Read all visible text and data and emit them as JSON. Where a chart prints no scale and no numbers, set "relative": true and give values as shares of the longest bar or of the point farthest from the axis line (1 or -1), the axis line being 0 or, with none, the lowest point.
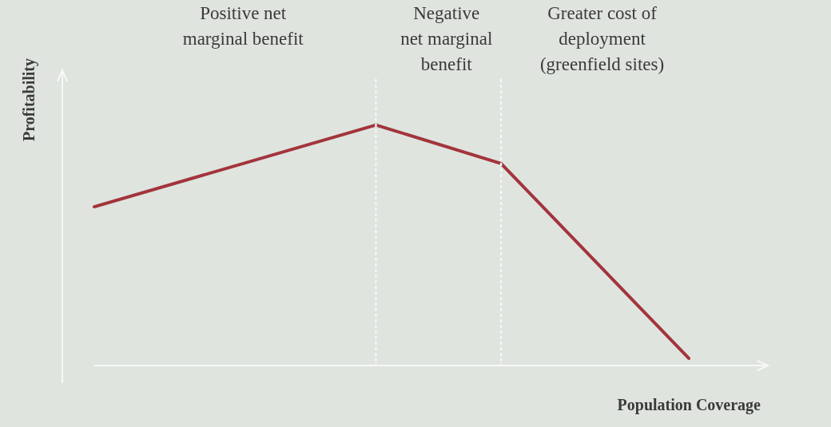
{
  "chart_data": {
    "type": "line",
    "relative": true,
    "xlabel": "Population Coverage",
    "ylabel": "Profitability",
    "marker": "none",
    "line_style": "solid",
    "categories": [
      null,
      null,
      null,
      null,
      null,
      null,
      null,
      null,
      null,
      null,
      null,
      null,
      null,
      null,
      null,
      null,
      null,
      null,
      null,
      null
    ],
    "series": [
      {
        "color": "#a3343b",
        "values": [
          0.66,
          null,
          null,
          null,
          null,
          null,
          null,
          null,
          null,
          1,
          null,
          null,
          null,
          0.84,
          null,
          null,
          null,
          null,
          null,
          0.03
        ]
      }
    ],
    "annotations": [
      "Positive net\nmarginal benefit",
      "Negative\nnet marginal\nbenefit",
      "Greater cost of\ndeployment\n(greenfield sites)"
    ]
  }
}
